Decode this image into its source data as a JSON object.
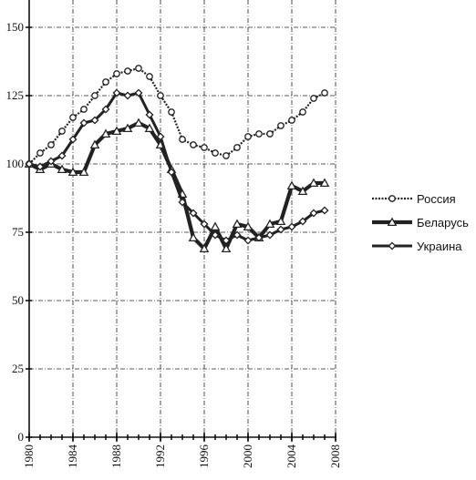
{
  "chart_data": {
    "type": "line",
    "title": "",
    "xlabel": "",
    "ylabel": "",
    "xlim": [
      1980,
      2008
    ],
    "ylim": [
      0,
      160
    ],
    "x_ticks": [
      "1980",
      "1984",
      "1988",
      "1992",
      "1996",
      "2000",
      "2004",
      "2008"
    ],
    "y_ticks": [
      "0",
      "25",
      "50",
      "75",
      "100",
      "125",
      "150"
    ],
    "grid": true,
    "legend_position": "right",
    "series": [
      {
        "name": "Россия",
        "marker": "circle",
        "color": "#222222",
        "x": [
          1980,
          1981,
          1982,
          1983,
          1984,
          1985,
          1986,
          1987,
          1988,
          1989,
          1990,
          1991,
          1992,
          1993,
          1994,
          1995,
          1996,
          1997,
          1998,
          1999,
          2000,
          2001,
          2002,
          2003,
          2004,
          2005,
          2006,
          2007
        ],
        "y": [
          100,
          104,
          107,
          112,
          117,
          120,
          125,
          130,
          133,
          134,
          135,
          132,
          125,
          119,
          109,
          107,
          106,
          104,
          103,
          106,
          110,
          111,
          111,
          114,
          116,
          119,
          124,
          126
        ]
      },
      {
        "name": "Беларусь",
        "marker": "triangle",
        "color": "#222222",
        "x": [
          1980,
          1981,
          1982,
          1983,
          1984,
          1985,
          1986,
          1987,
          1988,
          1989,
          1990,
          1991,
          1992,
          1993,
          1994,
          1995,
          1996,
          1997,
          1998,
          1999,
          2000,
          2001,
          2002,
          2003,
          2004,
          2005,
          2006,
          2007
        ],
        "y": [
          100,
          98,
          100,
          98,
          97,
          97,
          107,
          111,
          112,
          113,
          115,
          113,
          107,
          98,
          89,
          73,
          69,
          77,
          69,
          78,
          77,
          73,
          78,
          79,
          92,
          90,
          93,
          93
        ]
      },
      {
        "name": "Украина",
        "marker": "diamond",
        "color": "#222222",
        "x": [
          1980,
          1981,
          1982,
          1983,
          1984,
          1985,
          1986,
          1987,
          1988,
          1989,
          1990,
          1991,
          1992,
          1993,
          1994,
          1995,
          1996,
          1997,
          1998,
          1999,
          2000,
          2001,
          2002,
          2003,
          2004,
          2005,
          2006,
          2007
        ],
        "y": [
          100,
          99,
          101,
          103,
          109,
          115,
          116,
          120,
          126,
          125,
          126,
          118,
          110,
          97,
          86,
          82,
          78,
          74,
          72,
          74,
          72,
          73,
          74,
          76,
          77,
          79,
          82,
          83
        ]
      }
    ]
  }
}
